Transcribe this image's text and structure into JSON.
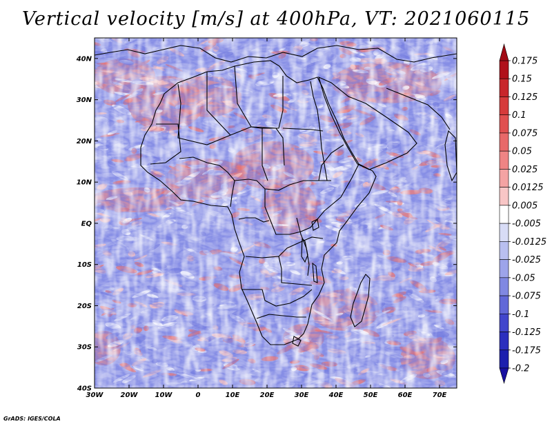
{
  "title": "Vertical velocity [m/s] at 400hPa, VT: 2021060115",
  "credit": "GrADS: IGES/COLA",
  "map": {
    "lon_range": [
      -30,
      75
    ],
    "lat_range": [
      -40,
      45
    ],
    "lat_ticks": [
      "40N",
      "30N",
      "20N",
      "10N",
      "EQ",
      "10S",
      "20S",
      "30S",
      "40S"
    ],
    "lat_values": [
      40,
      30,
      20,
      10,
      0,
      -10,
      -20,
      -30,
      -40
    ],
    "lon_ticks": [
      "30W",
      "20W",
      "10W",
      "0",
      "10E",
      "20E",
      "30E",
      "40E",
      "50E",
      "60E",
      "70E"
    ],
    "lon_values": [
      -30,
      -20,
      -10,
      0,
      10,
      20,
      30,
      40,
      50,
      60,
      70
    ]
  },
  "colorbar": {
    "labels": [
      "0.175",
      "0.15",
      "0.125",
      "0.1",
      "0.075",
      "0.05",
      "0.025",
      "0.0125",
      "0.005",
      "-0.005",
      "-0.0125",
      "-0.025",
      "-0.05",
      "-0.075",
      "-0.1",
      "-0.125",
      "-0.175",
      "-0.2"
    ],
    "colors": [
      "#b0101a",
      "#c8262b",
      "#d63b3b",
      "#e05050",
      "#e86969",
      "#ef8484",
      "#f4a3a3",
      "#f8c6c6",
      "#ffffff",
      "#d8dcf6",
      "#b9bff0",
      "#9da4ea",
      "#8088e2",
      "#6168d8",
      "#4146cc",
      "#2b2fbe",
      "#1c1fae"
    ],
    "max_color": "#a10a14",
    "min_color": "#1810a0"
  },
  "palette": {
    "blue": "#7f86e0",
    "light_blue": "#c9cdf3",
    "red": "#e77474",
    "light_red": "#f6bfbf",
    "white": "#fbfbff"
  }
}
